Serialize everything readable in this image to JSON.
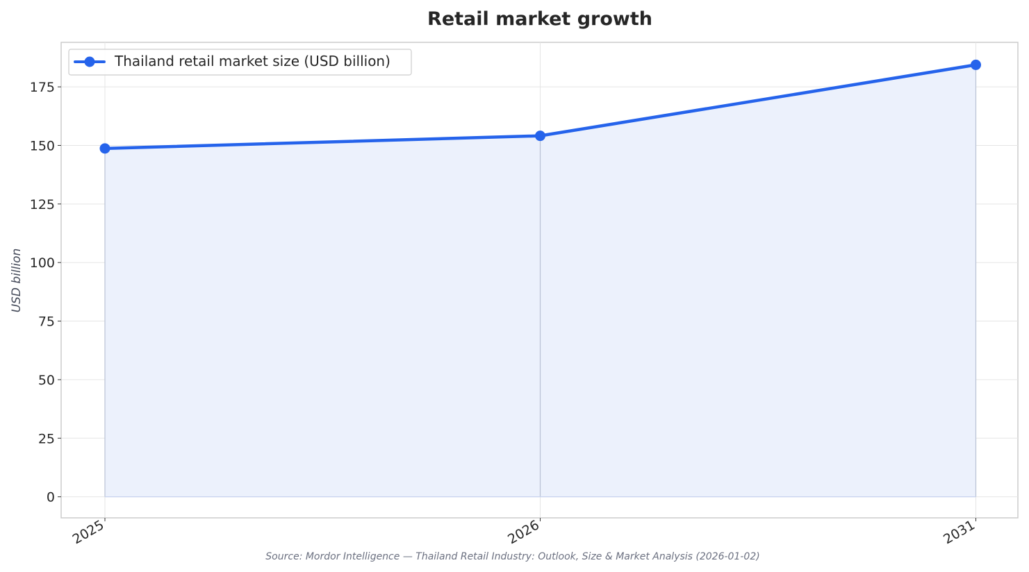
{
  "chart_data": {
    "type": "area",
    "title": "Retail market growth",
    "xlabel": "",
    "ylabel": "USD billion",
    "categories": [
      "2025",
      "2026",
      "2031"
    ],
    "series": [
      {
        "name": "Thailand retail market size (USD billion)",
        "values": [
          148.7,
          154.1,
          184.4
        ]
      }
    ],
    "ylim": [
      -9,
      194
    ],
    "yticks": [
      0,
      25,
      50,
      75,
      100,
      125,
      150,
      175
    ],
    "grid": true,
    "legend_position": "top-left",
    "source": "Source: Mordor Intelligence — Thailand Retail Industry: Outlook, Size & Market Analysis (2026-01-02)",
    "colors": {
      "line": "#2563eb",
      "fill": "#ecf1fc",
      "grid": "#e5e5e5",
      "frame": "#cccccc"
    }
  }
}
